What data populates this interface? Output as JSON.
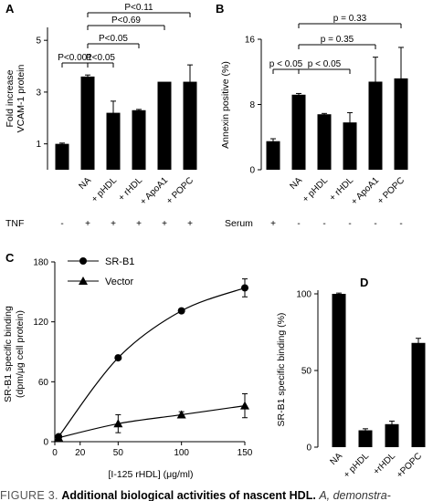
{
  "chart_data": [
    {
      "panel": "A",
      "type": "bar",
      "ylabel_lines": [
        "Fold increase",
        "VCAM-1 protein"
      ],
      "yticks": [
        1,
        3,
        5
      ],
      "ylim": [
        0,
        5.5
      ],
      "categories": [
        "-",
        "NA",
        "+ pHDL",
        "+ rHDL",
        "+ ApoA1",
        "+ POPC"
      ],
      "tnf_row_label": "TNF",
      "tnf_row": [
        "-",
        "+",
        "+",
        "+",
        "+",
        "+"
      ],
      "values": [
        1.0,
        3.6,
        2.2,
        2.3,
        3.4,
        3.4
      ],
      "errors": [
        0.03,
        0.06,
        0.45,
        0.03,
        0.0,
        0.65
      ],
      "comparisons": [
        {
          "from": 1,
          "to": 5,
          "label": "P<0.11"
        },
        {
          "from": 1,
          "to": 4,
          "label": "P<0.69"
        },
        {
          "from": 1,
          "to": 3,
          "label": "P<0.05"
        },
        {
          "from": 0,
          "to": 1,
          "label": "P<0.001"
        },
        {
          "from": 1,
          "to": 2,
          "label": "P<0.05"
        }
      ]
    },
    {
      "panel": "B",
      "type": "bar",
      "ylabel": "Annexin positive (%)",
      "yticks": [
        0,
        8,
        16
      ],
      "ylim": [
        0,
        16
      ],
      "categories": [
        "-",
        "NA",
        "+ pHDL",
        "+ rHDL",
        "+ ApoA1",
        "+ POPC"
      ],
      "serum_row_label": "Serum",
      "serum_row": [
        "+",
        "-",
        "-",
        "-",
        "-",
        "-"
      ],
      "values": [
        3.5,
        9.2,
        6.8,
        5.8,
        10.8,
        11.2
      ],
      "errors": [
        0.3,
        0.15,
        0.1,
        1.2,
        3.0,
        3.8
      ],
      "comparisons": [
        {
          "from": 1,
          "to": 5,
          "label": "p = 0.33"
        },
        {
          "from": 1,
          "to": 4,
          "label": "p = 0.35"
        },
        {
          "from": 0,
          "to": 1,
          "label": "p < 0.05"
        },
        {
          "from": 1,
          "to": 3,
          "label": "p < 0.05"
        }
      ]
    },
    {
      "panel": "C",
      "type": "line",
      "ylabel_lines": [
        "SR-B1 specific binding",
        "(dpm/μg cell protein)"
      ],
      "xlabel": "[I-125 rHDL] (μg/ml)",
      "xticks": [
        0,
        20,
        50,
        100,
        150
      ],
      "yticks": [
        0,
        60,
        120,
        180
      ],
      "xlim": [
        0,
        150
      ],
      "ylim": [
        0,
        180
      ],
      "legend": "top-left",
      "series": [
        {
          "name": "SR-B1",
          "marker": "circle",
          "x": [
            3,
            50,
            100,
            150
          ],
          "y": [
            5,
            84,
            131,
            154
          ],
          "err": [
            2,
            2,
            2,
            9
          ]
        },
        {
          "name": "Vector",
          "marker": "triangle",
          "x": [
            3,
            50,
            100,
            150
          ],
          "y": [
            4,
            18,
            27,
            36
          ],
          "err": [
            1,
            9,
            3,
            12
          ]
        }
      ]
    },
    {
      "panel": "D",
      "type": "bar",
      "ylabel": "SR-B1 specific binding (%)",
      "yticks": [
        0,
        50,
        100
      ],
      "ylim": [
        0,
        100
      ],
      "categories": [
        "NA",
        "+ pHDL",
        "+rHDL",
        "+POPC"
      ],
      "values": [
        100,
        11,
        15,
        68
      ],
      "errors": [
        0.5,
        1,
        2,
        3
      ]
    }
  ],
  "caption": {
    "label": "FIGURE 3.",
    "title": "Additional biological activities of nascent HDL.",
    "text": "A, demonstra-"
  }
}
